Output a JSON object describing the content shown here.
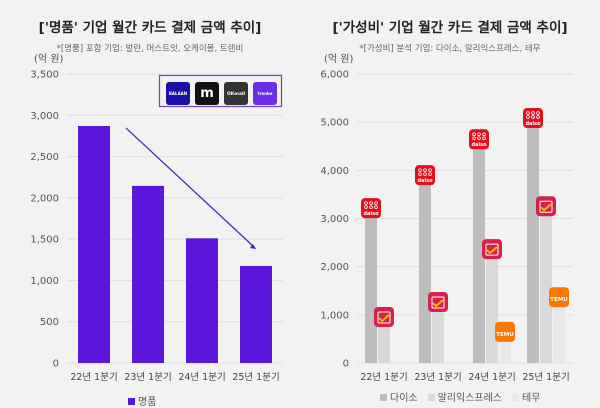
{
  "chart_data": [
    {
      "type": "bar",
      "title": "['명품' 기업 월간 카드 결제 금액 추이]",
      "subtitle": "*[명품] 포함 기업: 발란, 머스트잇, 오케이몰, 트렌비",
      "ylabel": "(억 원)",
      "ylim": [
        0,
        3500
      ],
      "yticks": [
        0,
        500,
        1000,
        1500,
        2000,
        2500,
        3000,
        3500
      ],
      "ytick_labels": [
        "0",
        "500",
        "1,000",
        "1,500",
        "2,000",
        "2,500",
        "3,000",
        "3,500"
      ],
      "categories": [
        "22년 1분기",
        "23년 1분기",
        "24년 1분기",
        "25년 1분기"
      ],
      "series": [
        {
          "name": "명품",
          "values": [
            2870,
            2145,
            1510,
            1175
          ],
          "color": "#5b16d9"
        }
      ],
      "logos": [
        "BALAAN",
        "m",
        "OKmall",
        "trenbe"
      ],
      "annotation": "downward trend arrow",
      "grid": true,
      "legend": "bottom"
    },
    {
      "type": "bar",
      "title": "['가성비' 기업 월간 카드 결제 금액 추이]",
      "subtitle": "*[가성비] 분석 기업: 다이소, 알리익스프레스, 테무",
      "ylabel": "(억 원)",
      "ylim": [
        0,
        6000
      ],
      "yticks": [
        0,
        1000,
        2000,
        3000,
        4000,
        5000,
        6000
      ],
      "ytick_labels": [
        "0",
        "1,000",
        "2,000",
        "3,000",
        "4,000",
        "5,000",
        "6,000"
      ],
      "categories": [
        "22년 1분기",
        "23년 1분기",
        "24년 1분기",
        "25년 1분기"
      ],
      "series": [
        {
          "name": "다이소",
          "values": [
            3340,
            4025,
            4770,
            5210
          ],
          "color": "#bdbdbd",
          "icon": "daiso"
        },
        {
          "name": "알리익스프레스",
          "values": [
            1080,
            1390,
            2490,
            3380
          ],
          "color": "#d9d9d9",
          "icon": "aliexpress"
        },
        {
          "name": "테무",
          "values": [
            null,
            null,
            770,
            1490
          ],
          "color": "#e8e8e8",
          "icon": "TEMU"
        }
      ],
      "grid": true,
      "legend": "bottom"
    }
  ]
}
